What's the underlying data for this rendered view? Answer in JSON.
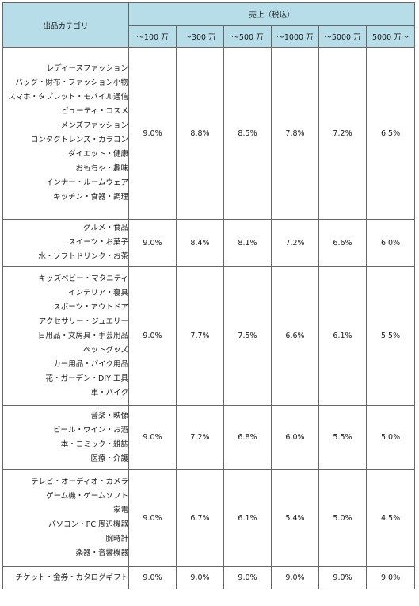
{
  "header": {
    "category_label": "出品カテゴリ",
    "sales_label": "売上（税込）",
    "tiers": [
      "～100 万",
      "～300 万",
      "～500 万",
      "～1000 万",
      "～5000 万",
      "5000 万～"
    ]
  },
  "groups": [
    {
      "categories": [
        "レディースファッション",
        "バッグ・財布・ファッション小物",
        "スマホ・タブレット・モバイル通信",
        "ビューティ・コスメ",
        "メンズファッション",
        "コンタクトレンズ・カラコン",
        "ダイエット・健康",
        "おもちゃ・趣味",
        "インナー・ルームウェア",
        "キッチン・食器・調理"
      ],
      "rates": [
        "9.0%",
        "8.8%",
        "8.5%",
        "7.8%",
        "7.2%",
        "6.5%"
      ]
    },
    {
      "categories": [
        "グルメ・食品",
        "スイーツ・お菓子",
        "水・ソフトドリンク・お茶"
      ],
      "rates": [
        "9.0%",
        "8.4%",
        "8.1%",
        "7.2%",
        "6.6%",
        "6.0%"
      ]
    },
    {
      "categories": [
        "キッズベビー・マタニティ",
        "インテリア・寝具",
        "スポーツ・アウトドア",
        "アクセサリー・ジュエリー",
        "日用品・文房具・手芸用品",
        "ペットグッズ",
        "カー用品・バイク用品",
        "花・ガーデン・DIY 工具",
        "車・バイク"
      ],
      "rates": [
        "9.0%",
        "7.7%",
        "7.5%",
        "6.6%",
        "6.1%",
        "5.5%"
      ]
    },
    {
      "categories": [
        "音楽・映像",
        "ビール・ワイン・お酒",
        "本・コミック・雑誌",
        "医療・介護"
      ],
      "rates": [
        "9.0%",
        "7.2%",
        "6.8%",
        "6.0%",
        "5.5%",
        "5.0%"
      ]
    },
    {
      "categories": [
        "テレビ・オーディオ・カメラ",
        "ゲーム機・ゲームソフト",
        "家電",
        "パソコン・PC 周辺機器",
        "腕時計",
        "楽器・音響機器"
      ],
      "rates": [
        "9.0%",
        "6.7%",
        "6.1%",
        "5.4%",
        "5.0%",
        "4.5%"
      ]
    },
    {
      "categories": [
        "チケット・金券・カタログギフト"
      ],
      "rates": [
        "9.0%",
        "9.0%",
        "9.0%",
        "9.0%",
        "9.0%",
        "9.0%"
      ]
    }
  ]
}
